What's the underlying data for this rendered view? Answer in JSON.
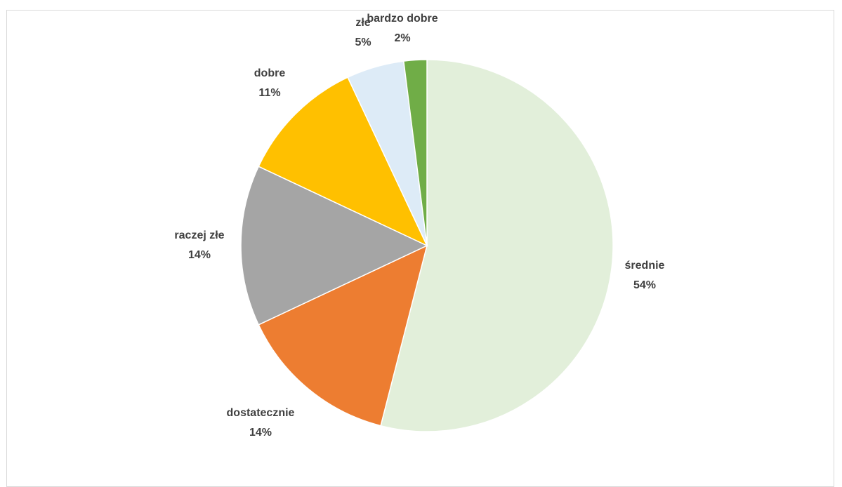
{
  "chart_data": {
    "type": "pie",
    "title": "",
    "start_angle_deg": 0,
    "direction": "clockwise",
    "colors": {
      "średnie": "#e2efda",
      "dostatecznie": "#ed7d31",
      "raczej złe": "#a5a5a5",
      "dobre": "#ffc000",
      "złe": "#ddebf7",
      "bardzo dobre": "#70ad47",
      "slice_border": "#ffffff",
      "label_text": "#404040",
      "frame_border": "#d9d9d9"
    },
    "slices": [
      {
        "name": "średnie",
        "value": 54,
        "percent_label": "54%"
      },
      {
        "name": "dostatecznie",
        "value": 14,
        "percent_label": "14%"
      },
      {
        "name": "raczej złe",
        "value": 14,
        "percent_label": "14%"
      },
      {
        "name": "dobre",
        "value": 11,
        "percent_label": "11%"
      },
      {
        "name": "złe",
        "value": 5,
        "percent_label": "5%"
      },
      {
        "name": "bardzo dobre",
        "value": 2,
        "percent_label": "2%"
      }
    ]
  }
}
